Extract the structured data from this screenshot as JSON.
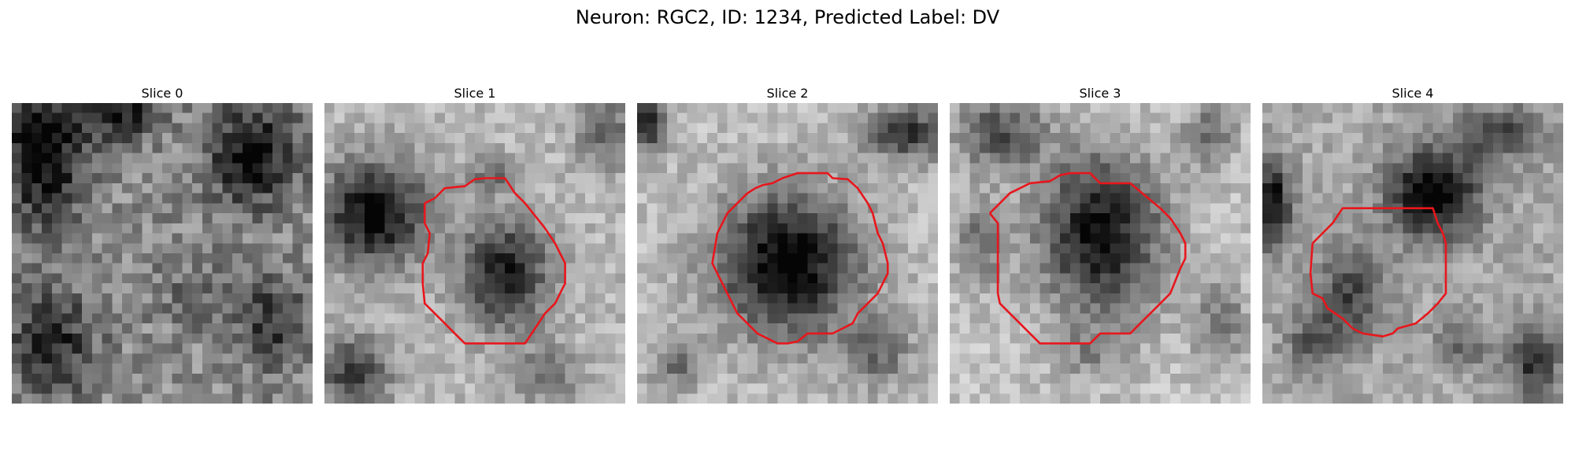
{
  "figure": {
    "title": "Neuron: RGC2, ID: 1234, Predicted Label: DV"
  },
  "colors": {
    "contour": "#e8161c",
    "background": "#ffffff"
  },
  "slices": [
    {
      "title": "Slice 0",
      "has_contour": false
    },
    {
      "title": "Slice 1",
      "has_contour": true
    },
    {
      "title": "Slice 2",
      "has_contour": true
    },
    {
      "title": "Slice 3",
      "has_contour": true
    },
    {
      "title": "Slice 4",
      "has_contour": true
    }
  ]
}
